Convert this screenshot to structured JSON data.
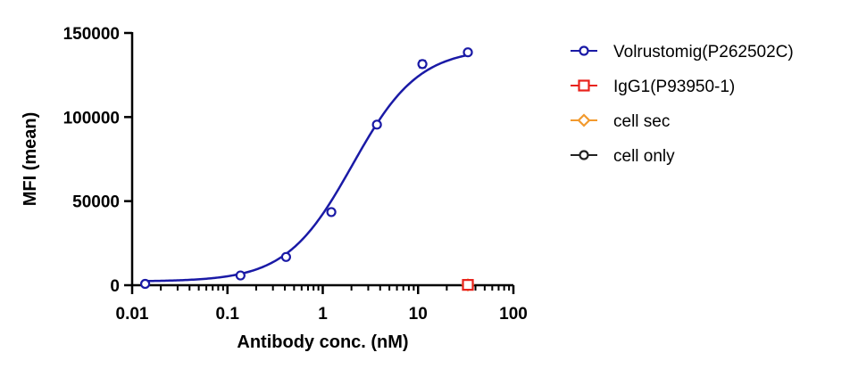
{
  "chart_data": {
    "type": "scatter",
    "xlabel": "Antibody conc. (nM)",
    "ylabel": "MFI (mean)",
    "xscale": "log",
    "xlim": [
      0.01,
      100
    ],
    "ylim": [
      0,
      150000
    ],
    "xticks": [
      0.01,
      0.1,
      1,
      10,
      100
    ],
    "xtick_labels": [
      "0.01",
      "0.1",
      "1",
      "10",
      "100"
    ],
    "yticks": [
      0,
      50000,
      100000,
      150000
    ],
    "ytick_labels": [
      "0",
      "50000",
      "100000",
      "150000"
    ],
    "legend_position": "right",
    "series": [
      {
        "name": "Volrustomig(P262502C)",
        "color": "#1a1aa6",
        "marker": "circle",
        "fit": "4PL",
        "x": [
          0.0137,
          0.137,
          0.412,
          1.23,
          3.7,
          11.1,
          33.3
        ],
        "y": [
          800,
          5800,
          16800,
          43500,
          95500,
          131500,
          138500
        ],
        "err": [
          0,
          0,
          0,
          0,
          0,
          2000,
          0
        ]
      },
      {
        "name": "IgG1(P93950-1)",
        "color": "#e8221b",
        "marker": "square",
        "x": [
          33.3
        ],
        "y": [
          200
        ]
      },
      {
        "name": "cell sec",
        "color": "#f29a2e",
        "marker": "diamond",
        "x": [
          33.3
        ],
        "y": [
          200
        ]
      },
      {
        "name": "cell only",
        "color": "#222222",
        "marker": "circle",
        "x": [
          33.3
        ],
        "y": [
          200
        ]
      }
    ]
  }
}
